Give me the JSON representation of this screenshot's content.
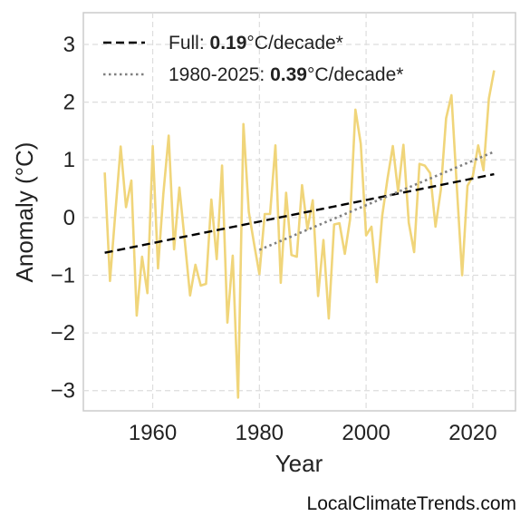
{
  "chart_data": {
    "type": "line",
    "xlabel": "Year",
    "ylabel": "Anomaly (°C)",
    "xlim": [
      1947,
      2028
    ],
    "ylim": [
      -3.35,
      3.55
    ],
    "x_ticks": [
      1960,
      1980,
      2000,
      2020
    ],
    "y_ticks": [
      -3,
      -2,
      -1,
      0,
      1,
      2,
      3
    ],
    "x_tick_labels": [
      "1960",
      "1980",
      "2000",
      "2020"
    ],
    "y_tick_labels": [
      "−3",
      "−2",
      "−1",
      "0",
      "1",
      "2",
      "3"
    ],
    "grid": true,
    "legend_position": "top-left",
    "series": [
      {
        "style": "solid",
        "color": "#f0d57a",
        "x": [
          1951,
          1952,
          1953,
          1954,
          1955,
          1956,
          1957,
          1958,
          1959,
          1960,
          1961,
          1962,
          1963,
          1964,
          1965,
          1966,
          1967,
          1968,
          1969,
          1970,
          1971,
          1972,
          1973,
          1974,
          1975,
          1976,
          1977,
          1978,
          1979,
          1980,
          1981,
          1982,
          1983,
          1984,
          1985,
          1986,
          1987,
          1988,
          1989,
          1990,
          1991,
          1992,
          1993,
          1994,
          1995,
          1996,
          1997,
          1998,
          1999,
          2000,
          2001,
          2002,
          2003,
          2004,
          2005,
          2006,
          2007,
          2008,
          2009,
          2010,
          2011,
          2012,
          2013,
          2014,
          2015,
          2016,
          2017,
          2018,
          2019,
          2020,
          2021,
          2022,
          2023,
          2024
        ],
        "y": [
          0.78,
          -1.1,
          0.08,
          1.23,
          0.18,
          0.64,
          -1.7,
          -0.68,
          -1.31,
          1.24,
          -0.88,
          0.41,
          1.42,
          -0.55,
          0.52,
          -0.4,
          -1.35,
          -0.82,
          -1.18,
          -1.15,
          0.31,
          -0.72,
          0.9,
          -1.82,
          -0.66,
          -3.12,
          1.62,
          0.1,
          -0.45,
          -0.98,
          0.06,
          0.06,
          1.25,
          -1.13,
          0.43,
          -0.65,
          -0.68,
          0.56,
          -0.2,
          0.3,
          -1.36,
          -0.39,
          -1.75,
          -0.12,
          -0.1,
          -0.63,
          -0.03,
          1.87,
          1.28,
          -0.31,
          -0.16,
          -1.12,
          0.02,
          0.67,
          1.24,
          0.45,
          1.26,
          -0.09,
          -0.6,
          0.93,
          0.9,
          0.77,
          -0.16,
          0.48,
          1.72,
          2.12,
          0.54,
          -1.0,
          0.55,
          0.72,
          1.25,
          0.82,
          2.06,
          2.55
        ]
      },
      {
        "name": "Full",
        "rate": "0.19",
        "unit": "°C/decade*",
        "style": "dashed",
        "color": "#000000",
        "x": [
          1951,
          2024
        ],
        "y": [
          -0.61,
          0.75
        ]
      },
      {
        "name": "1980-2025",
        "rate": "0.39",
        "unit": "°C/decade*",
        "style": "dotted",
        "color": "#808080",
        "x": [
          1980,
          2024
        ],
        "y": [
          -0.56,
          1.14
        ]
      }
    ]
  },
  "credit": "LocalClimateTrends.com"
}
